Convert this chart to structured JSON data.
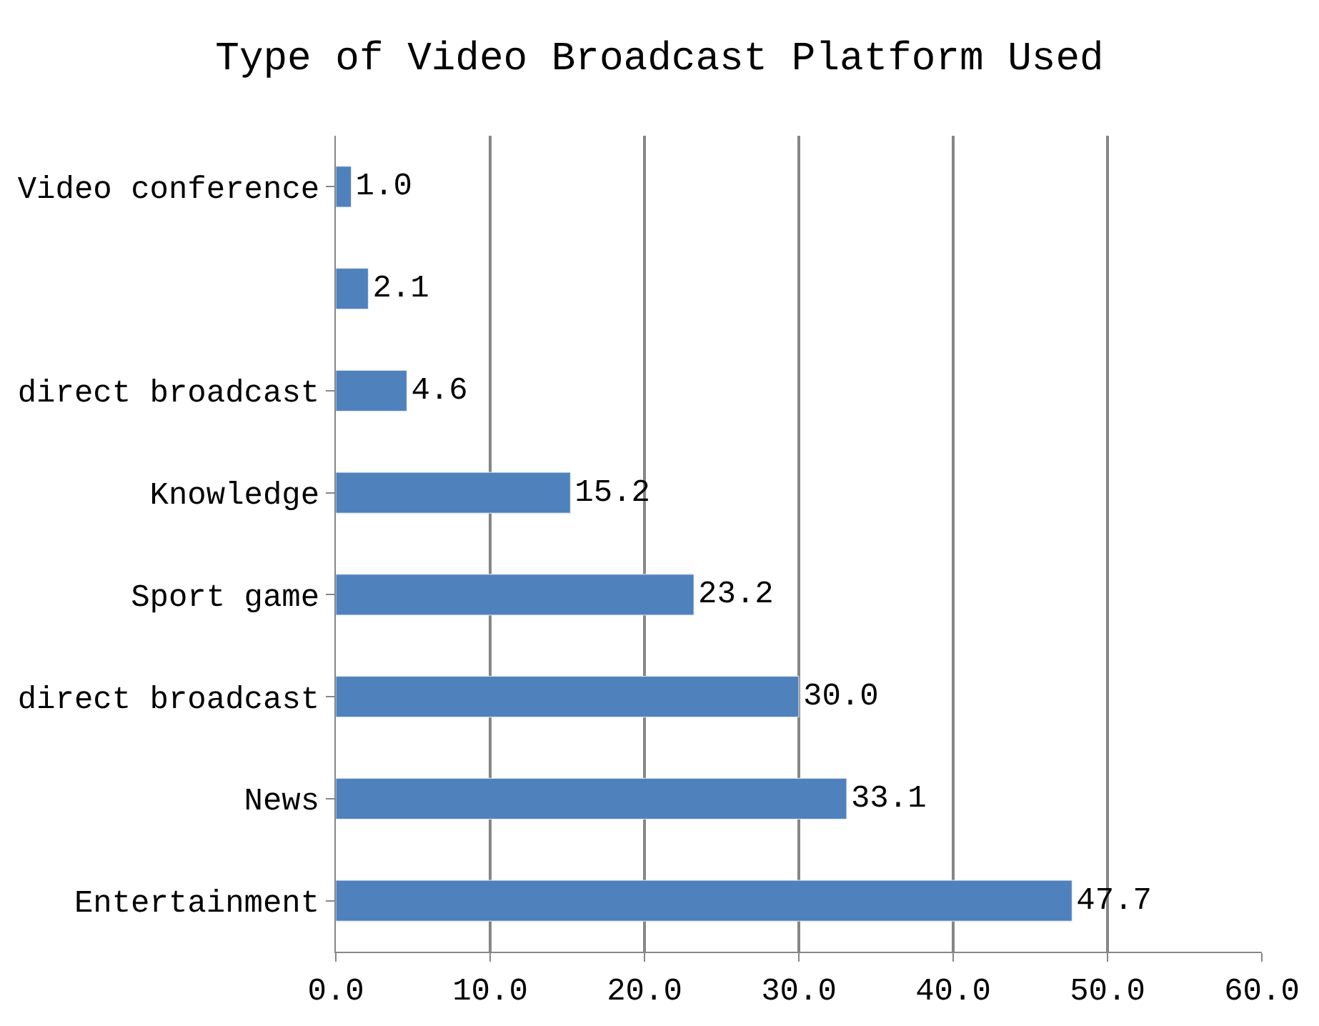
{
  "chart_data": {
    "type": "bar",
    "orientation": "horizontal",
    "title": "Type of Video Broadcast Platform Used",
    "categories": [
      "Video conference",
      null,
      "direct broadcast",
      "Knowledge",
      "Sport game",
      "direct broadcast",
      "News",
      "Entertainment"
    ],
    "values": [
      1.0,
      2.1,
      4.6,
      15.2,
      23.2,
      30.0,
      33.1,
      47.7
    ],
    "value_labels": [
      "1.0",
      "2.1",
      "4.6",
      "15.2",
      "23.2",
      "30.0",
      "33.1",
      "47.7"
    ],
    "color": "#4f81bd",
    "xlim": [
      0,
      60
    ],
    "xticks": [
      {
        "value": 0,
        "label": "0.0"
      },
      {
        "value": 10,
        "label": "10.0"
      },
      {
        "value": 20,
        "label": "20.0"
      },
      {
        "value": 30,
        "label": "30.0"
      },
      {
        "value": 40,
        "label": "40.0"
      },
      {
        "value": 50,
        "label": "50.0"
      },
      {
        "value": 60,
        "label": "60.0"
      }
    ],
    "grid": "x",
    "legend": false
  }
}
